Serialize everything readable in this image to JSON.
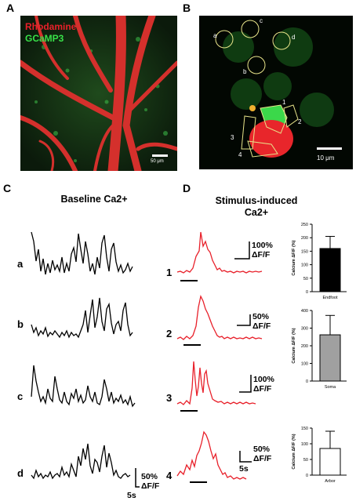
{
  "panels": {
    "A": {
      "label": "A",
      "legend_rhodamine": "Rhodamine",
      "legend_gcamp": "GCaMP3",
      "legend_rhodamine_color": "#e8202a",
      "legend_gcamp_color": "#38e048",
      "scale_bar": "50 μm"
    },
    "B": {
      "label": "B",
      "scale_bar": "10 μm",
      "roi_letters": [
        "a",
        "b",
        "c",
        "d"
      ],
      "roi_numbers": [
        "1",
        "2",
        "3",
        "4"
      ]
    },
    "C": {
      "label": "C",
      "title": "Baseline Ca2+",
      "rows": [
        "a",
        "b",
        "c",
        "d"
      ],
      "scale_y": "50%",
      "scale_unit": "ΔF/F",
      "scale_x": "5s",
      "trace_color": "#000000"
    },
    "D": {
      "label": "D",
      "title_line1": "Stimulus-induced",
      "title_line2": "Ca2+",
      "rows": [
        "1",
        "2",
        "3",
        "4"
      ],
      "trace_color": "#e8202a",
      "scales": [
        {
          "y": "100%",
          "unit": "ΔF/F"
        },
        {
          "y": "50%",
          "unit": "ΔF/F"
        },
        {
          "y": "100%",
          "unit": "ΔF/F"
        },
        {
          "y": "50%",
          "unit": "ΔF/F",
          "x": "5s"
        }
      ]
    }
  },
  "chart_data": [
    {
      "type": "bar",
      "categories": [
        "Endfoot"
      ],
      "values": [
        160
      ],
      "error": [
        45
      ],
      "ylabel": "Calcium ΔF/F (%)",
      "ylim": [
        0,
        250
      ],
      "yticks": [
        "0",
        "50",
        "100",
        "150",
        "200",
        "250"
      ],
      "color": "#000000"
    },
    {
      "type": "bar",
      "categories": [
        "Soma"
      ],
      "values": [
        262
      ],
      "error": [
        110
      ],
      "ylabel": "Calcium ΔF/F (%)",
      "ylim": [
        0,
        400
      ],
      "yticks": [
        "0",
        "100",
        "200",
        "300",
        "400"
      ],
      "color": "#a0a0a0"
    },
    {
      "type": "bar",
      "categories": [
        "Arbor"
      ],
      "values": [
        85
      ],
      "error": [
        55
      ],
      "ylabel": "Calcium ΔF/F (%)",
      "ylim": [
        0,
        150
      ],
      "yticks": [
        "0",
        "50",
        "100",
        "150"
      ],
      "color": "#ffffff"
    }
  ]
}
